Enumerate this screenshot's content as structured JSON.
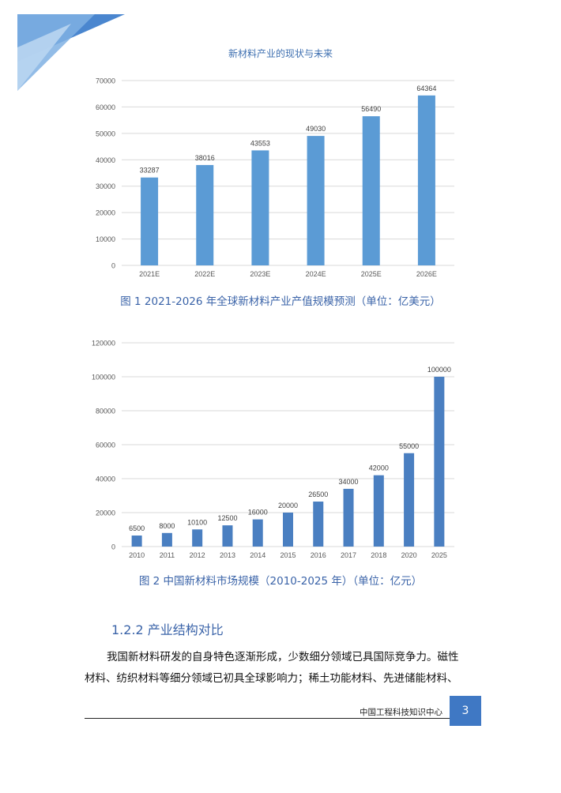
{
  "header": {
    "running_title": "新材料产业的现状与未来"
  },
  "figures": [
    {
      "caption": "图 1 2021-2026 年全球新材料产业产值规模预测（单位：亿美元）"
    },
    {
      "caption": "图 2 中国新材料市场规模（2010-2025 年）（单位：亿元）"
    }
  ],
  "section": {
    "number_title": "1.2.2 产业结构对比"
  },
  "body": {
    "line1": "我国新材料研发的自身特色逐渐形成，少数细分领域已具国际竞争力。磁性",
    "line2": "材料、纺织材料等细分领域已初具全球影响力；稀土功能材料、先进储能材料、"
  },
  "footer": {
    "org": "中国工程科技知识中心",
    "page": "3"
  },
  "colors": {
    "bar": "#5b9bd5",
    "bar2": "#4a7fc1",
    "accent": "#3a63a8"
  },
  "chart_data": [
    {
      "type": "bar",
      "categories": [
        "2021E",
        "2022E",
        "2023E",
        "2024E",
        "2025E",
        "2026E"
      ],
      "values": [
        33287,
        38016,
        43553,
        49030,
        56490,
        64364
      ],
      "ylim": [
        0,
        70000
      ],
      "yticks": [
        0,
        10000,
        20000,
        30000,
        40000,
        50000,
        60000,
        70000
      ],
      "grid": true
    },
    {
      "type": "bar",
      "categories": [
        "2010",
        "2011",
        "2012",
        "2013",
        "2014",
        "2015",
        "2016",
        "2017",
        "2018",
        "2020",
        "2025"
      ],
      "values": [
        6500,
        8000,
        10100,
        12500,
        16000,
        20000,
        26500,
        34000,
        42000,
        55000,
        100000
      ],
      "ylim": [
        0,
        120000
      ],
      "yticks": [
        0,
        20000,
        40000,
        60000,
        80000,
        100000,
        120000
      ],
      "grid": true
    }
  ]
}
